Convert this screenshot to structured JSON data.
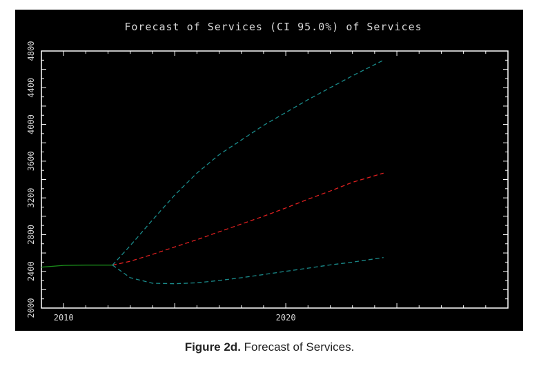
{
  "chart_data": {
    "type": "line",
    "title": "Forecast of Services (CI 95.0%) of Services",
    "xlabel": "",
    "ylabel": "",
    "xlim": [
      2009,
      2030
    ],
    "ylim": [
      2000,
      4800
    ],
    "x_ticks": [
      {
        "value": 2010,
        "label": "2010"
      },
      {
        "value": 2020,
        "label": "2020"
      }
    ],
    "y_ticks": [
      {
        "value": 2000,
        "label": "2000"
      },
      {
        "value": 2400,
        "label": "2400"
      },
      {
        "value": 2800,
        "label": "2800"
      },
      {
        "value": 3200,
        "label": "3200"
      },
      {
        "value": 3600,
        "label": "3600"
      },
      {
        "value": 4000,
        "label": "4000"
      },
      {
        "value": 4400,
        "label": "4400"
      },
      {
        "value": 4800,
        "label": "4800"
      }
    ],
    "grid": false,
    "legend": "none",
    "series": [
      {
        "style": "solid",
        "color": "#1a8c1a",
        "x": [
          2009,
          2010,
          2011,
          2012.2
        ],
        "y": [
          2445,
          2465,
          2468,
          2468
        ]
      },
      {
        "style": "dashed",
        "color": "#e02020",
        "x": [
          2012.2,
          2013,
          2014,
          2015,
          2016,
          2017,
          2018,
          2019,
          2020,
          2021,
          2022,
          2023,
          2024.4
        ],
        "y": [
          2468,
          2510,
          2585,
          2665,
          2745,
          2830,
          2915,
          3000,
          3090,
          3185,
          3275,
          3370,
          3470
        ]
      },
      {
        "style": "dashed",
        "color": "#1a8a8a",
        "x": [
          2012.2,
          2013,
          2014,
          2015,
          2016,
          2017,
          2018,
          2019,
          2020,
          2021,
          2022,
          2023,
          2024.4
        ],
        "y": [
          2468,
          2680,
          2960,
          3230,
          3470,
          3670,
          3830,
          3990,
          4130,
          4270,
          4400,
          4530,
          4700
        ]
      },
      {
        "style": "dashed",
        "color": "#1a8a8a",
        "x": [
          2012.2,
          2013,
          2014,
          2015,
          2016,
          2017,
          2018,
          2019,
          2020,
          2021,
          2022,
          2023,
          2024.4
        ],
        "y": [
          2468,
          2330,
          2270,
          2265,
          2275,
          2300,
          2330,
          2365,
          2400,
          2435,
          2470,
          2500,
          2550
        ]
      }
    ]
  },
  "caption": {
    "label": "Figure 2d.",
    "text": " Forecast of Services."
  }
}
